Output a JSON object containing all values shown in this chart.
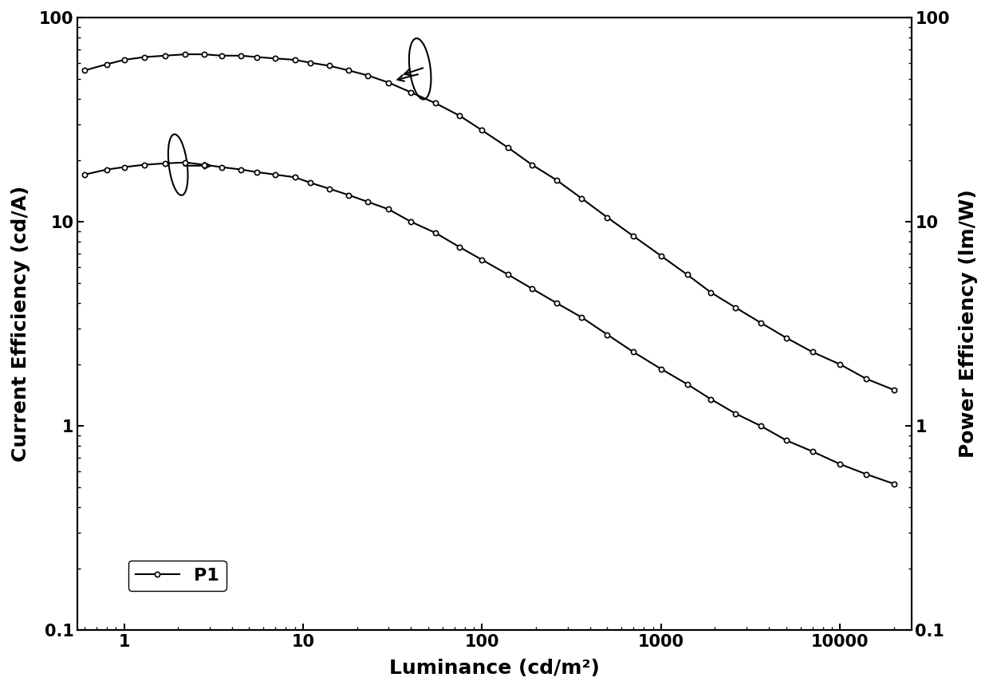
{
  "xlabel": "Luminance (cd/m²)",
  "ylabel_left": "Current Efficiency (cd/A)",
  "ylabel_right": "Power Efficiency (lm/W)",
  "legend_label": "P1",
  "xlim": [
    0.55,
    25000
  ],
  "ylim_left": [
    0.1,
    100
  ],
  "ylim_right": [
    0.1,
    100
  ],
  "line_color": "#000000",
  "marker": "o",
  "marker_size": 4.5,
  "marker_facecolor": "white",
  "linewidth": 1.5,
  "background_color": "#ffffff",
  "axis_label_fontsize": 18,
  "tick_fontsize": 15,
  "legend_fontsize": 16,
  "current_efficiency_x": [
    0.6,
    0.8,
    1.0,
    1.3,
    1.7,
    2.2,
    2.8,
    3.5,
    4.5,
    5.5,
    7,
    9,
    11,
    14,
    18,
    23,
    30,
    40,
    55,
    75,
    100,
    140,
    190,
    260,
    360,
    500,
    700,
    1000,
    1400,
    1900,
    2600,
    3600,
    5000,
    7000,
    10000,
    14000,
    20000
  ],
  "current_efficiency_y": [
    55,
    59,
    62,
    64,
    65,
    66,
    66,
    65,
    65,
    64,
    63,
    62,
    60,
    58,
    55,
    52,
    48,
    43,
    38,
    33,
    28,
    23,
    19,
    16,
    13,
    10.5,
    8.5,
    6.8,
    5.5,
    4.5,
    3.8,
    3.2,
    2.7,
    2.3,
    2.0,
    1.7,
    1.5
  ],
  "power_efficiency_x": [
    0.6,
    0.8,
    1.0,
    1.3,
    1.7,
    2.2,
    2.8,
    3.5,
    4.5,
    5.5,
    7,
    9,
    11,
    14,
    18,
    23,
    30,
    40,
    55,
    75,
    100,
    140,
    190,
    260,
    360,
    500,
    700,
    1000,
    1400,
    1900,
    2600,
    3600,
    5000,
    7000,
    10000,
    14000,
    20000
  ],
  "power_efficiency_y": [
    17,
    18,
    18.5,
    19,
    19.3,
    19.5,
    19.0,
    18.5,
    18.0,
    17.5,
    17.0,
    16.5,
    15.5,
    14.5,
    13.5,
    12.5,
    11.5,
    10.0,
    8.8,
    7.5,
    6.5,
    5.5,
    4.7,
    4.0,
    3.4,
    2.8,
    2.3,
    1.9,
    1.6,
    1.35,
    1.15,
    1.0,
    0.85,
    0.75,
    0.65,
    0.58,
    0.52
  ]
}
